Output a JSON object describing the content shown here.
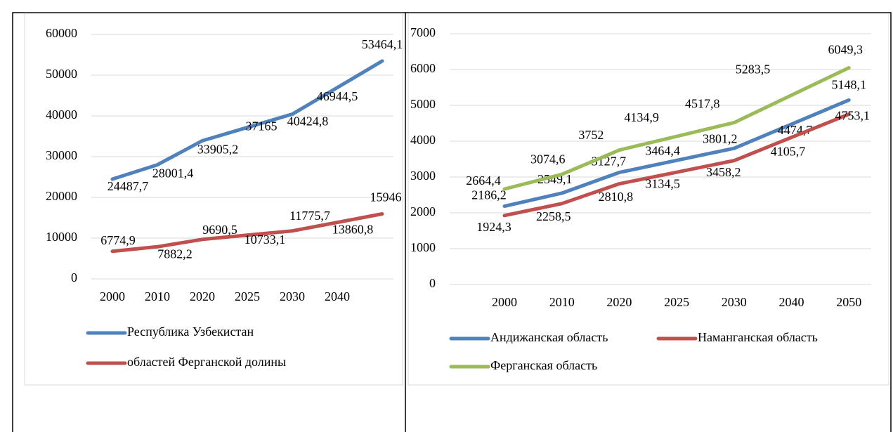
{
  "chart_data": [
    {
      "type": "line",
      "categories": [
        "2000",
        "2010",
        "2020",
        "2025",
        "2030",
        "2040",
        null
      ],
      "ylim": [
        0,
        60000
      ],
      "yticks": [
        0,
        10000,
        20000,
        30000,
        40000,
        50000,
        60000
      ],
      "grid": true,
      "legend": "bottom",
      "series": [
        {
          "name": "Республика Узбекистан",
          "color": "#4f81bd",
          "values": [
            24487.7,
            28001.4,
            33905.2,
            37165,
            40424.8,
            46944.5,
            53464.1
          ],
          "value_labels": [
            "24487,7",
            "28001,4",
            "33905,2",
            "37165",
            "40424,8",
            "46944,5",
            "53464,1"
          ]
        },
        {
          "name": "областей Ферганской долины",
          "color": "#c0504d",
          "values": [
            6774.9,
            7882.2,
            9690.5,
            10733.1,
            11775.7,
            13860.8,
            15946
          ],
          "value_labels": [
            "6774,9",
            "7882,2",
            "9690,5",
            "10733,1",
            "11775,7",
            "13860,8",
            "15946"
          ]
        }
      ]
    },
    {
      "type": "line",
      "categories": [
        "2000",
        "2010",
        "2020",
        "2025",
        "2030",
        "2040",
        "2050"
      ],
      "ylim": [
        0,
        7000
      ],
      "yticks": [
        0,
        1000,
        2000,
        3000,
        4000,
        5000,
        6000,
        7000
      ],
      "grid": true,
      "legend": "bottom",
      "series": [
        {
          "name": "Андижанская область",
          "color": "#4f81bd",
          "values": [
            2186.2,
            2549.1,
            3127.7,
            3464.4,
            3801.2,
            4474.7,
            5148.1
          ],
          "value_labels": [
            "2186,2",
            "2549,1",
            "3127,7",
            "3464,4",
            "3801,2",
            "4474,7",
            "5148,1"
          ]
        },
        {
          "name": "Наманганская область",
          "color": "#c0504d",
          "values": [
            1924.3,
            2258.5,
            2810.8,
            3134.5,
            3458.2,
            4105.7,
            4753.1
          ],
          "value_labels": [
            "1924,3",
            "2258,5",
            "2810,8",
            "3134,5",
            "3458,2",
            "4105,7",
            "4753,1"
          ]
        },
        {
          "name": "Ферганская область",
          "color": "#9bbb59",
          "values": [
            2664.4,
            3074.6,
            3752,
            4134.9,
            4517.8,
            5283.5,
            6049.3
          ],
          "value_labels": [
            "2664,4",
            "3074,6",
            "3752",
            "4134,9",
            "4517,8",
            "5283,5",
            "6049,3"
          ]
        }
      ]
    }
  ]
}
